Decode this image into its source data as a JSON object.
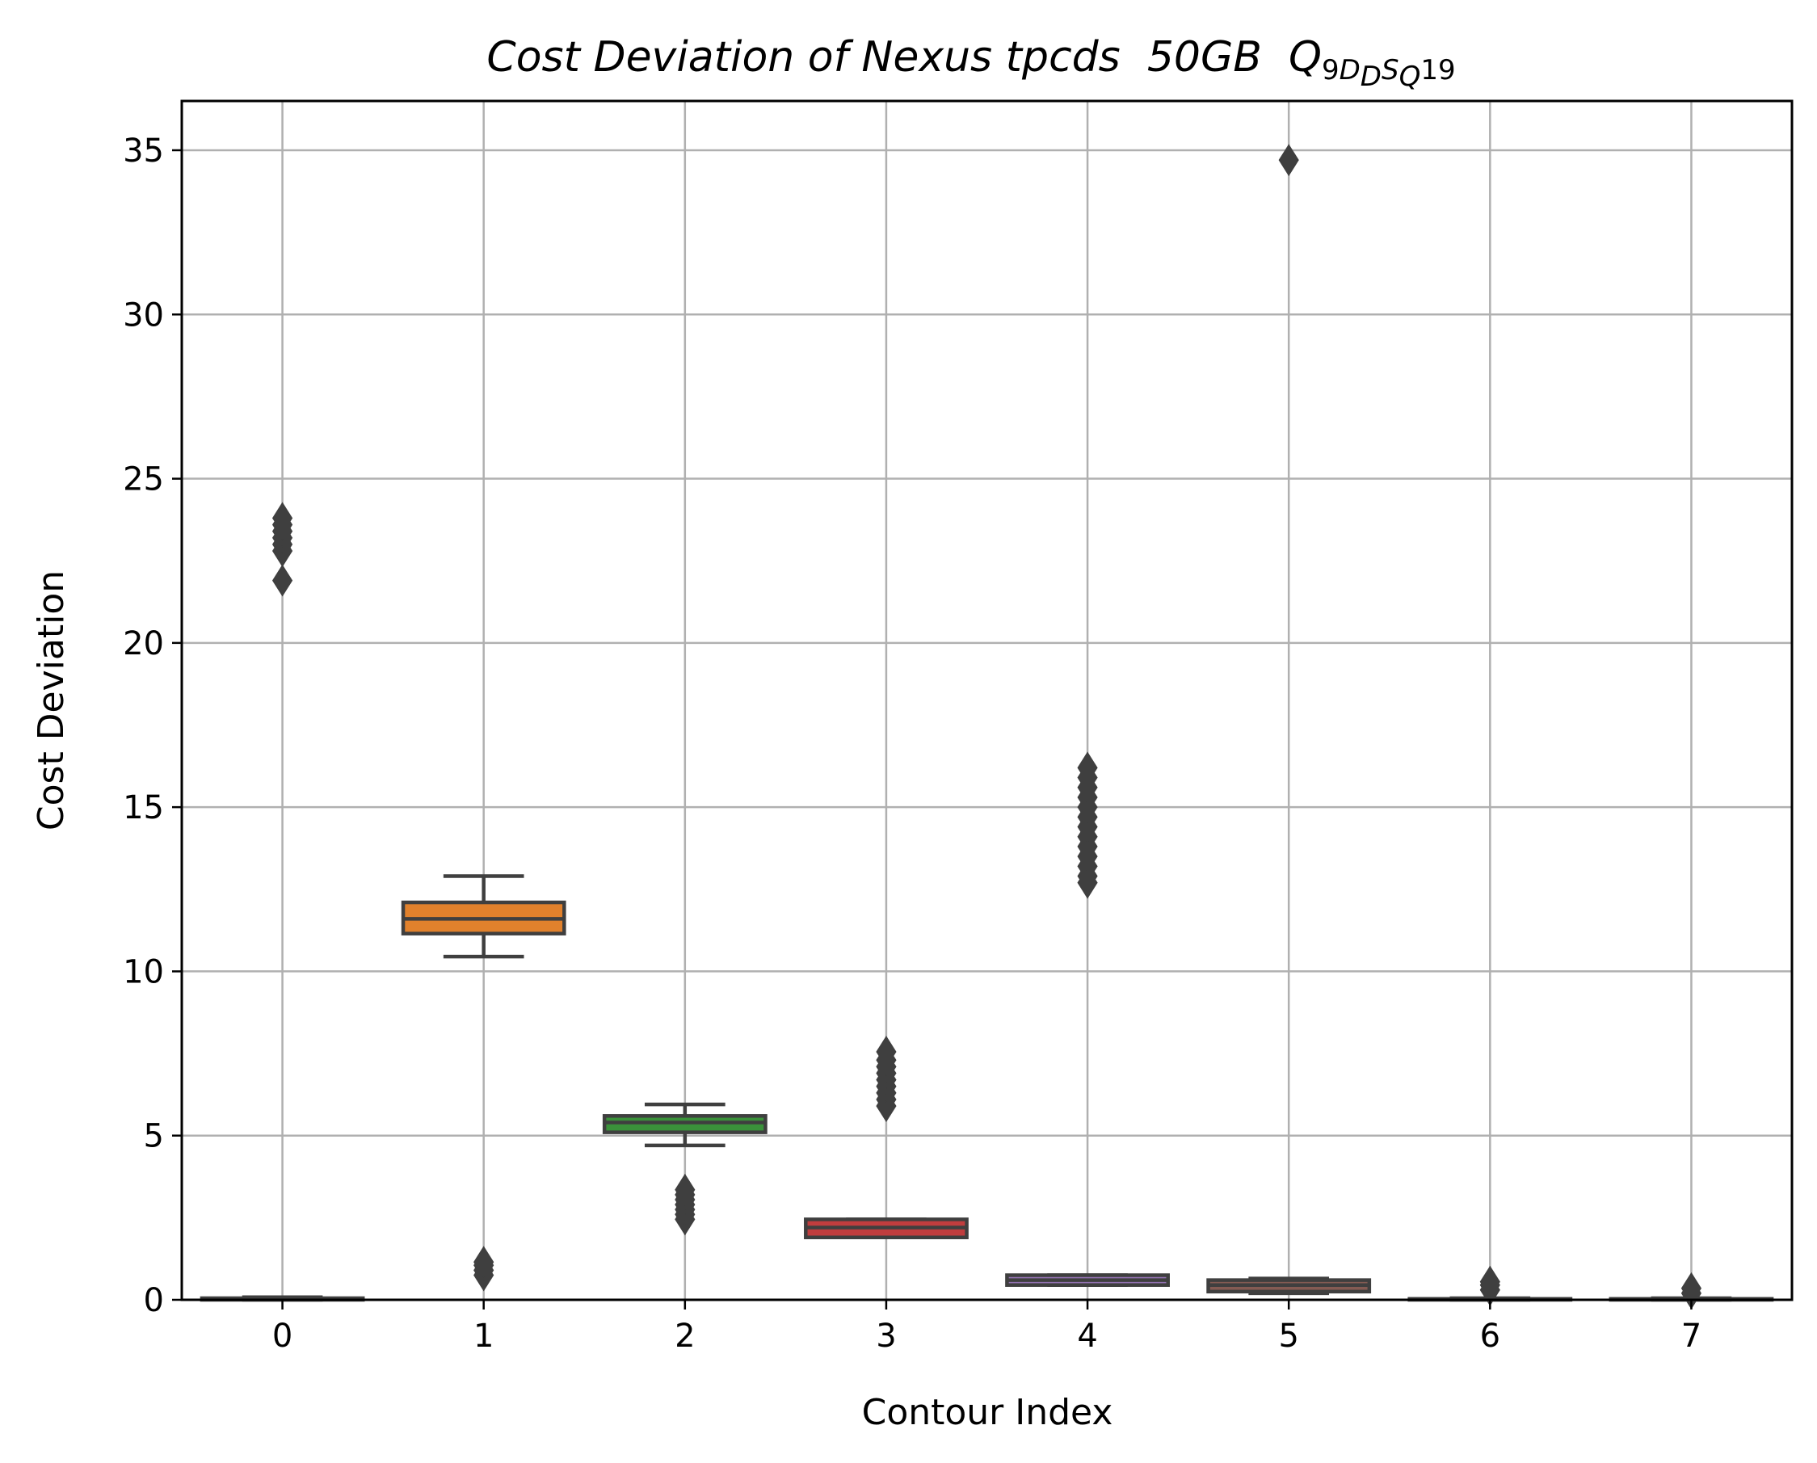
{
  "chart_data": {
    "type": "box",
    "title": {
      "main": "Cost Deviation of Nexus tpcds  50GB  ",
      "q": "Q",
      "sub1": "9",
      "d": "D",
      "d_sub": "D",
      "s": "S",
      "s_sub": "Q",
      "sub2": "19"
    },
    "xlabel": "Contour Index",
    "ylabel": "Cost Deviation",
    "categories": [
      "0",
      "1",
      "2",
      "3",
      "4",
      "5",
      "6",
      "7"
    ],
    "ylim": [
      0,
      36.5
    ],
    "yticks": [
      0,
      5,
      10,
      15,
      20,
      25,
      30,
      35
    ],
    "grid": true,
    "edge_color": "#3f3f3f",
    "boxes": [
      {
        "label": "0",
        "color": "#3274a1",
        "q1": 0.0,
        "median": 0.02,
        "q3": 0.05,
        "whisker_low": 0.0,
        "whisker_high": 0.08,
        "outliers": [
          21.9,
          22.8,
          23.0,
          23.2,
          23.4,
          23.6,
          23.8
        ]
      },
      {
        "label": "1",
        "color": "#e1812c",
        "q1": 11.15,
        "median": 11.6,
        "q3": 12.1,
        "whisker_low": 10.45,
        "whisker_high": 12.9,
        "outliers": [
          0.75,
          0.9,
          1.05,
          1.15
        ]
      },
      {
        "label": "2",
        "color": "#3a923a",
        "q1": 5.1,
        "median": 5.4,
        "q3": 5.6,
        "whisker_low": 4.7,
        "whisker_high": 5.95,
        "outliers": [
          2.45,
          2.6,
          2.75,
          2.9,
          3.05,
          3.2,
          3.35
        ]
      },
      {
        "label": "3",
        "color": "#c03d3e",
        "q1": 1.9,
        "median": 2.2,
        "q3": 2.45,
        "whisker_low": 1.9,
        "whisker_high": 2.45,
        "outliers": [
          5.9,
          6.1,
          6.3,
          6.5,
          6.7,
          6.9,
          7.1,
          7.3,
          7.55
        ]
      },
      {
        "label": "4",
        "color": "#9372b2",
        "q1": 0.45,
        "median": 0.6,
        "q3": 0.75,
        "whisker_low": 0.45,
        "whisker_high": 0.75,
        "outliers": [
          12.7,
          12.9,
          13.2,
          13.5,
          13.8,
          14.1,
          14.4,
          14.7,
          15.0,
          15.3,
          15.6,
          15.9,
          16.2
        ]
      },
      {
        "label": "5",
        "color": "#845b53",
        "q1": 0.25,
        "median": 0.45,
        "q3": 0.6,
        "whisker_low": 0.2,
        "whisker_high": 0.65,
        "outliers": [
          34.7
        ]
      },
      {
        "label": "6",
        "color": "#d684bd",
        "q1": 0.0,
        "median": 0.01,
        "q3": 0.03,
        "whisker_low": 0.0,
        "whisker_high": 0.05,
        "outliers": [
          0.3,
          0.45,
          0.55
        ]
      },
      {
        "label": "7",
        "color": "#7f7f7f",
        "q1": 0.0,
        "median": 0.01,
        "q3": 0.03,
        "whisker_low": 0.0,
        "whisker_high": 0.05,
        "outliers": [
          0.2,
          0.35
        ]
      }
    ]
  }
}
